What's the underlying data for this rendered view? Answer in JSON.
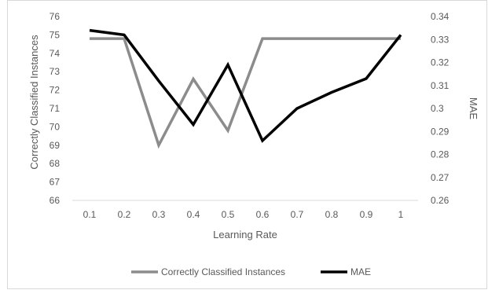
{
  "chart_data": {
    "type": "line",
    "xlabel": "Learning Rate",
    "ylabel": "Correctly Classified Instances",
    "y2label": "MAE",
    "categories": [
      "0.1",
      "0.2",
      "0.3",
      "0.4",
      "0.5",
      "0.6",
      "0.7",
      "0.8",
      "0.9",
      "1"
    ],
    "ylim": [
      66,
      76
    ],
    "yticks": [
      66,
      67,
      68,
      69,
      70,
      71,
      72,
      73,
      74,
      75,
      76
    ],
    "y2lim": [
      0.26,
      0.34
    ],
    "y2ticks": [
      "0.26",
      "0.27",
      "0.28",
      "0.29",
      "0.3",
      "0.31",
      "0.32",
      "0.33",
      "0.34"
    ],
    "grid": false,
    "legend": "bottom",
    "series": [
      {
        "name": "Correctly Classified Instances",
        "axis": "left",
        "color": "#8c8c8c",
        "values": [
          74.8,
          74.8,
          69.0,
          72.6,
          69.8,
          74.8,
          74.8,
          74.8,
          74.8,
          74.8
        ]
      },
      {
        "name": "MAE",
        "axis": "right",
        "color": "#000000",
        "values": [
          0.334,
          0.332,
          0.312,
          0.293,
          0.319,
          0.286,
          0.3,
          0.307,
          0.313,
          0.332
        ]
      }
    ]
  }
}
